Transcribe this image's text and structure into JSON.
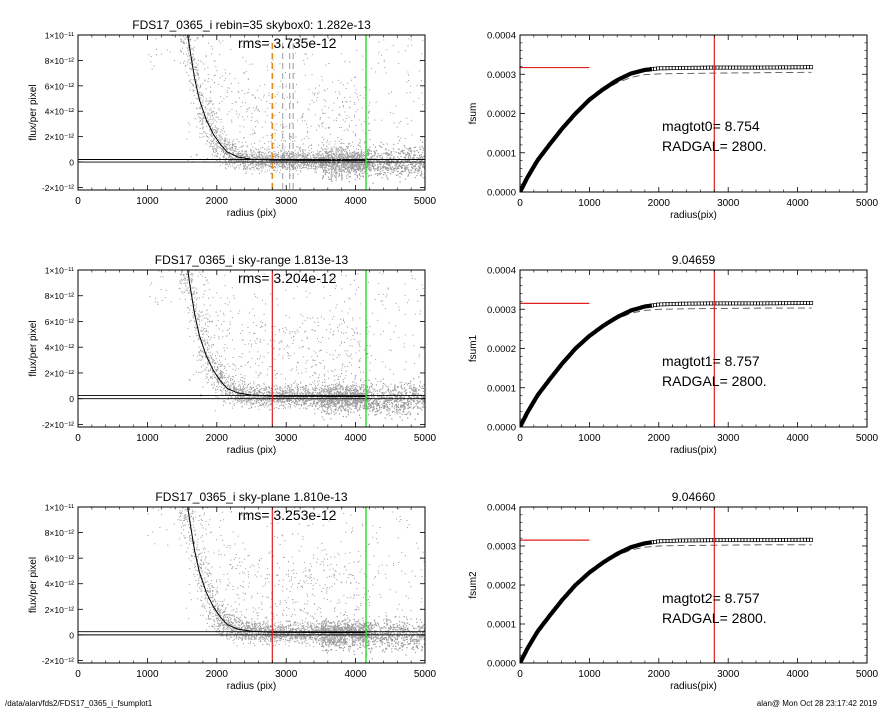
{
  "footer": {
    "path": "/data/alan/fds2/FDS17_0365_i_fsumplot1",
    "user_date": "alan@  Mon Oct 28 23:17:42 2019"
  },
  "colors": {
    "scatter": "#9a9a9a",
    "profile": "#000000",
    "radgal_line": "#e0201c",
    "sky_line": "#22dd22",
    "dashed_marker": "#e8891a",
    "frame": "#000000"
  },
  "chart_data": [
    {
      "type": "scatter",
      "panel": "left-top",
      "title": "FDS17_0365_i rebin=35    skybox0:  1.282e-13",
      "annotation": "rms= 3.735e-12",
      "xlabel": "radius (pix)",
      "ylabel": "flux/per pixel",
      "xlim": [
        0,
        5000
      ],
      "ylim": [
        -2.2e-12,
        1e-11
      ],
      "xticks": [
        "0",
        "1000",
        "2000",
        "3000",
        "4000",
        "5000"
      ],
      "yticks": [
        {
          "value": 1e-11,
          "label": "1×10⁻¹¹"
        },
        {
          "value": 8e-12,
          "label": "8×10⁻¹²"
        },
        {
          "value": 6e-12,
          "label": "6×10⁻¹²"
        },
        {
          "value": 4e-12,
          "label": "4×10⁻¹²"
        },
        {
          "value": 2e-12,
          "label": "2×10⁻¹²"
        },
        {
          "value": 0,
          "label": "0"
        },
        {
          "value": -2e-12,
          "label": "-2×10⁻¹²"
        }
      ],
      "profile_curve": {
        "x": [
          1580,
          1620,
          1680,
          1750,
          1850,
          1950,
          2050,
          2150,
          2300,
          2500,
          2800,
          3200,
          4150
        ],
        "y": [
          1e-11,
          8.6e-12,
          6.6e-12,
          4.9e-12,
          3.3e-12,
          2.2e-12,
          1.4e-12,
          8e-13,
          4e-13,
          2.2e-13,
          1.5e-13,
          1.3e-13,
          1.3e-13
        ]
      },
      "sky_level": 1.282e-13,
      "horizontal_lines": [
        0,
        2e-13
      ],
      "red_vline": null,
      "green_vline": 4150,
      "dashed_vlines": [
        {
          "x": 2800,
          "color": "#e8891a"
        },
        {
          "x": 2950,
          "color": "#9a9a9a"
        },
        {
          "x": 3050,
          "color": "#9a9a9a"
        },
        {
          "x": 3100,
          "color": "#9a9a9a"
        }
      ],
      "grey_vlines": [
        3650,
        3720,
        3800
      ]
    },
    {
      "type": "scatter",
      "panel": "left-middle",
      "title": "FDS17_0365_i sky-range  1.813e-13",
      "annotation": "rms= 3.204e-12",
      "xlabel": "radius (pix)",
      "ylabel": "flux/per pixel",
      "xlim": [
        0,
        5000
      ],
      "ylim": [
        -2.2e-12,
        1e-11
      ],
      "xticks": [
        "0",
        "1000",
        "2000",
        "3000",
        "4000",
        "5000"
      ],
      "yticks": [
        {
          "value": 1e-11,
          "label": "1×10⁻¹¹"
        },
        {
          "value": 8e-12,
          "label": "8×10⁻¹²"
        },
        {
          "value": 6e-12,
          "label": "6×10⁻¹²"
        },
        {
          "value": 4e-12,
          "label": "4×10⁻¹²"
        },
        {
          "value": 2e-12,
          "label": "2×10⁻¹²"
        },
        {
          "value": 0,
          "label": "0"
        },
        {
          "value": -2e-12,
          "label": "-2×10⁻¹²"
        }
      ],
      "profile_curve": {
        "x": [
          1580,
          1620,
          1680,
          1750,
          1850,
          1950,
          2050,
          2150,
          2300,
          2500,
          2800,
          3200,
          4150
        ],
        "y": [
          1e-11,
          8.6e-12,
          6.6e-12,
          4.9e-12,
          3.3e-12,
          2.2e-12,
          1.4e-12,
          8e-13,
          4.5e-13,
          2.8e-13,
          2e-13,
          1.9e-13,
          1.8e-13
        ]
      },
      "sky_level": 1.813e-13,
      "horizontal_lines": [
        0,
        2.5e-13
      ],
      "red_vline": 2800,
      "green_vline": 4150,
      "dashed_vlines": [],
      "grey_vlines": []
    },
    {
      "type": "scatter",
      "panel": "left-bottom",
      "title": "FDS17_0365_i sky-plane  1.810e-13",
      "annotation": "rms= 3.253e-12",
      "xlabel": "radius (pix)",
      "ylabel": "flux/per pixel",
      "xlim": [
        0,
        5000
      ],
      "ylim": [
        -2.2e-12,
        1e-11
      ],
      "xticks": [
        "0",
        "1000",
        "2000",
        "3000",
        "4000",
        "5000"
      ],
      "yticks": [
        {
          "value": 1e-11,
          "label": "1×10⁻¹¹"
        },
        {
          "value": 8e-12,
          "label": "8×10⁻¹²"
        },
        {
          "value": 6e-12,
          "label": "6×10⁻¹²"
        },
        {
          "value": 4e-12,
          "label": "4×10⁻¹²"
        },
        {
          "value": 2e-12,
          "label": "2×10⁻¹²"
        },
        {
          "value": 0,
          "label": "0"
        },
        {
          "value": -2e-12,
          "label": "-2×10⁻¹²"
        }
      ],
      "profile_curve": {
        "x": [
          1580,
          1620,
          1680,
          1750,
          1850,
          1950,
          2050,
          2150,
          2300,
          2500,
          2800,
          3200,
          4150
        ],
        "y": [
          1e-11,
          8.6e-12,
          6.6e-12,
          4.9e-12,
          3.3e-12,
          2.2e-12,
          1.4e-12,
          8e-13,
          4.5e-13,
          2.8e-13,
          2e-13,
          1.9e-13,
          1.8e-13
        ]
      },
      "sky_level": 1.81e-13,
      "horizontal_lines": [
        0,
        2.5e-13
      ],
      "red_vline": 2800,
      "green_vline": 4150,
      "dashed_vlines": [],
      "grey_vlines": []
    },
    {
      "type": "line",
      "panel": "right-top",
      "title": "",
      "ylabel": "fsum",
      "xlabel": "radius(pix)",
      "xlim": [
        0,
        5000
      ],
      "ylim": [
        0,
        0.0004
      ],
      "xticks": [
        "0",
        "1000",
        "2000",
        "3000",
        "4000",
        "5000"
      ],
      "yticks": [
        {
          "value": 0.0004,
          "label": "0.0004"
        },
        {
          "value": 0.0003,
          "label": "0.0003"
        },
        {
          "value": 0.0002,
          "label": "0.0002"
        },
        {
          "value": 0.0001,
          "label": "0.0001"
        },
        {
          "value": 0,
          "label": "0.0000"
        }
      ],
      "cumulative_curve": {
        "x": [
          0,
          100,
          250,
          400,
          600,
          800,
          1000,
          1200,
          1400,
          1600,
          1800,
          2000,
          2300,
          2800,
          3500,
          4200
        ],
        "y": [
          0.0,
          3.5e-05,
          8e-05,
          0.000115,
          0.00016,
          0.0002,
          0.000235,
          0.000262,
          0.000285,
          0.000302,
          0.000311,
          0.000315,
          0.000316,
          0.000317,
          0.000317,
          0.000318
        ]
      },
      "dashed_curve": {
        "x": [
          0,
          100,
          250,
          400,
          600,
          800,
          1000,
          1200,
          1400,
          1600,
          1800,
          2000,
          2300,
          2800,
          3500,
          4200
        ],
        "y": [
          0.0,
          3.5e-05,
          8e-05,
          0.000115,
          0.00016,
          0.0002,
          0.000233,
          0.000258,
          0.000278,
          0.000292,
          0.000299,
          0.000301,
          0.000302,
          0.000303,
          0.000304,
          0.000305
        ]
      },
      "red_hline": {
        "value": 0.000317,
        "x_from": 0,
        "x_to": 1000
      },
      "red_vline": 2800,
      "annotation_lines": [
        "magtot0=   8.754",
        "RADGAL=   2800."
      ]
    },
    {
      "type": "line",
      "panel": "right-middle",
      "title": "9.04659",
      "ylabel": "fsum1",
      "xlabel": "radius(pix)",
      "xlim": [
        0,
        5000
      ],
      "ylim": [
        0,
        0.0004
      ],
      "xticks": [
        "0",
        "1000",
        "2000",
        "3000",
        "4000",
        "5000"
      ],
      "yticks": [
        {
          "value": 0.0004,
          "label": "0.0004"
        },
        {
          "value": 0.0003,
          "label": "0.0003"
        },
        {
          "value": 0.0002,
          "label": "0.0002"
        },
        {
          "value": 0.0001,
          "label": "0.0001"
        },
        {
          "value": 0,
          "label": "0.0000"
        }
      ],
      "cumulative_curve": {
        "x": [
          0,
          100,
          250,
          400,
          600,
          800,
          1000,
          1200,
          1400,
          1600,
          1800,
          2000,
          2300,
          2800,
          3500,
          4200
        ],
        "y": [
          0.0,
          3.5e-05,
          8e-05,
          0.000115,
          0.00016,
          0.0002,
          0.000232,
          0.000258,
          0.00028,
          0.000297,
          0.000307,
          0.000312,
          0.000314,
          0.000315,
          0.000315,
          0.000316
        ]
      },
      "dashed_curve": {
        "x": [
          0,
          100,
          250,
          400,
          600,
          800,
          1000,
          1200,
          1400,
          1600,
          1800,
          2000,
          2300,
          2800,
          3500,
          4200
        ],
        "y": [
          0.0,
          3.5e-05,
          8e-05,
          0.000115,
          0.00016,
          0.0002,
          0.000231,
          0.000255,
          0.000275,
          0.00029,
          0.000297,
          0.0003,
          0.000301,
          0.000302,
          0.000303,
          0.000303
        ]
      },
      "red_hline": {
        "value": 0.000315,
        "x_from": 0,
        "x_to": 1000
      },
      "red_vline": 2800,
      "annotation_lines": [
        "magtot1=   8.757",
        "RADGAL=   2800."
      ]
    },
    {
      "type": "line",
      "panel": "right-bottom",
      "title": "9.04660",
      "ylabel": "fsum2",
      "xlabel": "radius(pix)",
      "xlim": [
        0,
        5000
      ],
      "ylim": [
        0,
        0.0004
      ],
      "xticks": [
        "0",
        "1000",
        "2000",
        "3000",
        "4000",
        "5000"
      ],
      "yticks": [
        {
          "value": 0.0004,
          "label": "0.0004"
        },
        {
          "value": 0.0003,
          "label": "0.0003"
        },
        {
          "value": 0.0002,
          "label": "0.0002"
        },
        {
          "value": 0.0001,
          "label": "0.0001"
        },
        {
          "value": 0,
          "label": "0.0000"
        }
      ],
      "cumulative_curve": {
        "x": [
          0,
          100,
          250,
          400,
          600,
          800,
          1000,
          1200,
          1400,
          1600,
          1800,
          2000,
          2300,
          2800,
          3500,
          4200
        ],
        "y": [
          0.0,
          3.5e-05,
          8e-05,
          0.000115,
          0.00016,
          0.0002,
          0.000232,
          0.000258,
          0.00028,
          0.000297,
          0.000307,
          0.000312,
          0.000314,
          0.000315,
          0.000315,
          0.000316
        ]
      },
      "dashed_curve": {
        "x": [
          0,
          100,
          250,
          400,
          600,
          800,
          1000,
          1200,
          1400,
          1600,
          1800,
          2000,
          2300,
          2800,
          3500,
          4200
        ],
        "y": [
          0.0,
          3.5e-05,
          8e-05,
          0.000115,
          0.00016,
          0.0002,
          0.000231,
          0.000255,
          0.000275,
          0.00029,
          0.000297,
          0.0003,
          0.000301,
          0.000302,
          0.000303,
          0.000303
        ]
      },
      "red_hline": {
        "value": 0.000315,
        "x_from": 0,
        "x_to": 1000
      },
      "red_vline": 2800,
      "annotation_lines": [
        "magtot2=   8.757",
        "RADGAL=   2800."
      ]
    }
  ]
}
